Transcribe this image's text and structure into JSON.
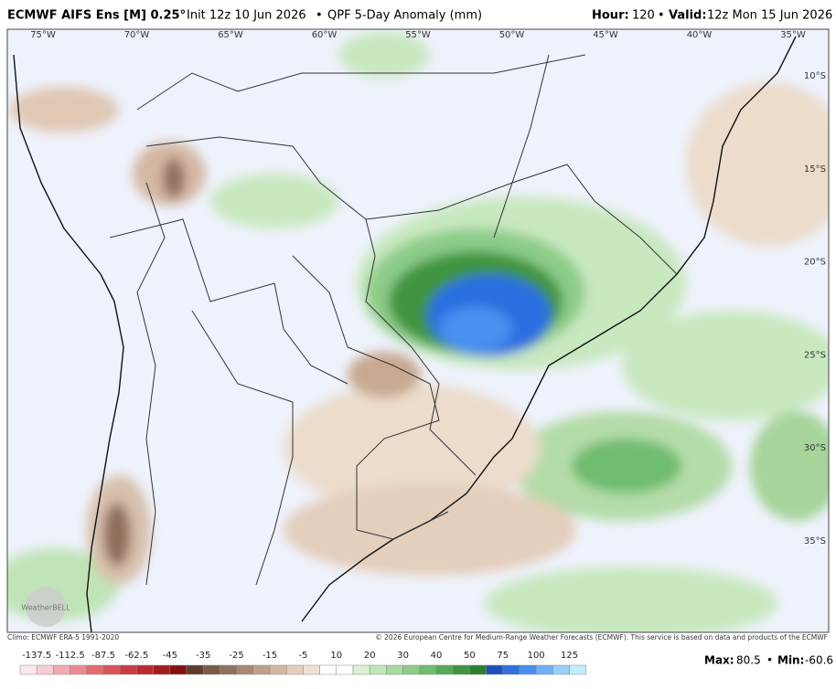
{
  "header": {
    "title": "ECMWF AIFS Ens [M] 0.25°",
    "init": "Init 12z 10 Jun 2026",
    "separator": "•",
    "product": "QPF 5-Day Anomaly (mm)",
    "hour_label": "Hour:",
    "hour": "120",
    "valid_label": "Valid:",
    "valid": "12z Mon 15 Jun 2026"
  },
  "map": {
    "longitude_labels": [
      "75°W",
      "70°W",
      "65°W",
      "60°W",
      "55°W",
      "50°W",
      "45°W",
      "40°W",
      "35°W"
    ],
    "latitude_labels": [
      "10°S",
      "15°S",
      "20°S",
      "25°S",
      "30°S",
      "35°S"
    ],
    "watermark": "WeatherBELL"
  },
  "footer": {
    "climo": "Climo: ECMWF ERA-5 1991-2020",
    "copyright": "© 2026 European Centre for Medium-Range Weather Forecasts (ECMWF). This service is based on data and products of the ECMWF"
  },
  "colorbar": {
    "labels": [
      "-137.5",
      "-112.5",
      "-87.5",
      "-62.5",
      "-45",
      "-35",
      "-25",
      "-15",
      "-5",
      "10",
      "20",
      "30",
      "40",
      "50",
      "75",
      "100",
      "125"
    ],
    "colors": [
      "#fce8ec",
      "#f8ccd4",
      "#f2aab2",
      "#ec8a92",
      "#e46a72",
      "#dc545c",
      "#cc3a42",
      "#bc2830",
      "#a41c1e",
      "#841212",
      "#5c3c2c",
      "#7a5a48",
      "#907060",
      "#a88874",
      "#bea08c",
      "#d2b8a4",
      "#e4cebc",
      "#f0e0d4",
      "#ffffff",
      "#ffffff",
      "#d8f0d0",
      "#c0e6b8",
      "#a6daa0",
      "#8ccc88",
      "#70bc70",
      "#58a858",
      "#409440",
      "#2c802c",
      "#2050c0",
      "#3070e0",
      "#4890f0",
      "#70b0f8",
      "#98d0fc",
      "#c0ecfe"
    ]
  },
  "stats": {
    "max_label": "Max:",
    "max": 80.5,
    "separator": "•",
    "min_label": "Min:",
    "min": -60.6
  }
}
